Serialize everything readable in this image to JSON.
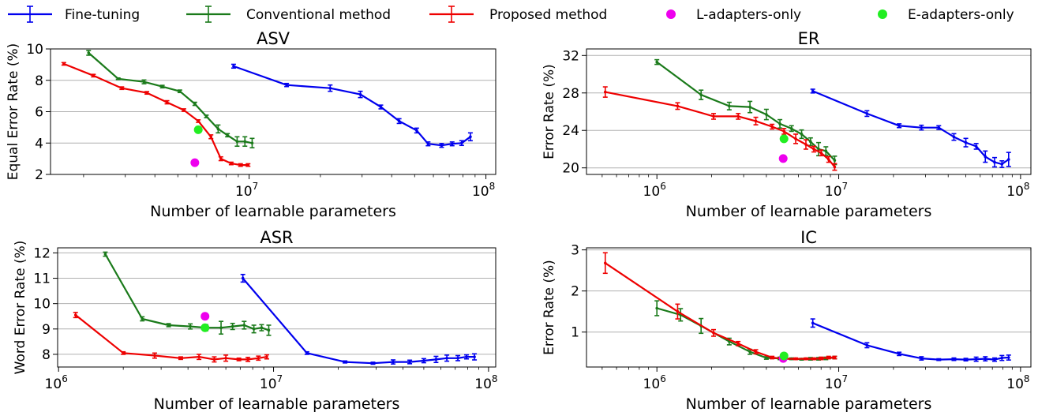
{
  "chart_data": [
    {
      "type": "line",
      "title": "ASV",
      "xlabel": "Number of learnable parameters",
      "ylabel": "Equal Error Rate (%)",
      "xscale": "log",
      "xlim": [
        1450000.0,
        110000000.0
      ],
      "ylim": [
        2,
        10
      ],
      "yticks": [
        2,
        4,
        6,
        8,
        10
      ],
      "xticks": [
        {
          "value": 10000000.0,
          "label": "10",
          "sup": "7"
        },
        {
          "value": 100000000.0,
          "label": "10",
          "sup": "8"
        }
      ],
      "grid": "horizontal",
      "series": [
        {
          "name": "Fine-tuning",
          "color": "#0000ee",
          "style": "errorbar",
          "x": [
            8600000.0,
            14400000.0,
            22000000.0,
            29500000.0,
            36000000.0,
            43000000.0,
            51000000.0,
            57000000.0,
            65000000.0,
            72000000.0,
            79000000.0,
            86000000.0
          ],
          "y": [
            8.9,
            7.7,
            7.5,
            7.1,
            6.3,
            5.4,
            4.8,
            3.95,
            3.85,
            3.95,
            4.0,
            4.4
          ],
          "err": [
            0.12,
            0.1,
            0.2,
            0.2,
            0.12,
            0.15,
            0.15,
            0.12,
            0.12,
            0.12,
            0.15,
            0.25
          ]
        },
        {
          "name": "Conventional method",
          "color": "#1a7a1a",
          "style": "errorbar",
          "x": [
            2100000.0,
            2800000.0,
            3600000.0,
            4300000.0,
            5100000.0,
            5900000.0,
            6600000.0,
            7400000.0,
            8100000.0,
            8900000.0,
            9600000.0,
            10300000.0
          ],
          "y": [
            9.75,
            8.1,
            7.9,
            7.6,
            7.3,
            6.5,
            5.7,
            4.9,
            4.5,
            4.1,
            4.1,
            4.0
          ],
          "err": [
            0.15,
            0.05,
            0.12,
            0.08,
            0.08,
            0.1,
            0.08,
            0.25,
            0.1,
            0.3,
            0.3,
            0.3
          ]
        },
        {
          "name": "Proposed method",
          "color": "#ee0000",
          "style": "errorbar",
          "x": [
            1650000.0,
            2200000.0,
            2900000.0,
            3700000.0,
            4500000.0,
            5300000.0,
            6100000.0,
            6900000.0,
            7600000.0,
            8400000.0,
            9200000.0,
            9900000.0
          ],
          "y": [
            9.05,
            8.3,
            7.5,
            7.2,
            6.6,
            6.1,
            5.4,
            4.4,
            3.0,
            2.7,
            2.6,
            2.6
          ],
          "err": [
            0.08,
            0.08,
            0.08,
            0.08,
            0.1,
            0.08,
            0.08,
            0.12,
            0.12,
            0.08,
            0.08,
            0.08
          ]
        },
        {
          "name": "L-adapters-only",
          "color": "#ee00ee",
          "style": "point",
          "x": [
            5900000.0
          ],
          "y": [
            2.75
          ]
        },
        {
          "name": "E-adapters-only",
          "color": "#22ee22",
          "style": "point",
          "x": [
            6100000.0
          ],
          "y": [
            4.85
          ]
        }
      ]
    },
    {
      "type": "line",
      "title": "ER",
      "xlabel": "Number of learnable parameters",
      "ylabel": "Error Rate (%)",
      "xscale": "log",
      "xlim": [
        410000.0,
        114000000.0
      ],
      "ylim": [
        19.3,
        32.7
      ],
      "yticks": [
        20,
        24,
        28,
        32
      ],
      "xticks": [
        {
          "value": 1000000.0,
          "label": "10",
          "sup": "6"
        },
        {
          "value": 10000000.0,
          "label": "10",
          "sup": "7"
        },
        {
          "value": 100000000.0,
          "label": "10",
          "sup": "8"
        }
      ],
      "grid": "horizontal",
      "series": [
        {
          "name": "Fine-tuning",
          "color": "#0000ee",
          "style": "errorbar",
          "x": [
            7200000.0,
            14300000.0,
            21500000.0,
            28500000.0,
            35500000.0,
            43000000.0,
            50000000.0,
            57000000.0,
            64000000.0,
            72000000.0,
            79000000.0,
            86000000.0
          ],
          "y": [
            28.2,
            25.8,
            24.5,
            24.3,
            24.3,
            23.3,
            22.7,
            22.3,
            21.2,
            20.6,
            20.4,
            20.9
          ],
          "err": [
            0.2,
            0.3,
            0.2,
            0.25,
            0.2,
            0.35,
            0.45,
            0.3,
            0.6,
            0.5,
            0.35,
            0.75
          ]
        },
        {
          "name": "Conventional method",
          "color": "#1a7a1a",
          "style": "errorbar",
          "x": [
            1000000.0,
            1750000.0,
            2500000.0,
            3250000.0,
            4000000.0,
            4750000.0,
            5500000.0,
            6250000.0,
            7000000.0,
            7750000.0,
            8500000.0,
            9500000.0
          ],
          "y": [
            31.3,
            27.8,
            26.6,
            26.5,
            25.7,
            24.7,
            24.2,
            23.6,
            22.8,
            22.0,
            21.8,
            20.8
          ],
          "err": [
            0.25,
            0.5,
            0.4,
            0.6,
            0.55,
            0.45,
            0.3,
            0.45,
            0.4,
            0.7,
            0.45,
            0.45
          ]
        },
        {
          "name": "Proposed method",
          "color": "#ee0000",
          "style": "errorbar",
          "x": [
            520000.0,
            1300000.0,
            2050000.0,
            2800000.0,
            3500000.0,
            4300000.0,
            5000000.0,
            5800000.0,
            6600000.0,
            7300000.0,
            8000000.0,
            8800000.0,
            9500000.0
          ],
          "y": [
            28.1,
            26.6,
            25.5,
            25.5,
            25.0,
            24.4,
            23.9,
            23.1,
            22.5,
            22.0,
            21.6,
            20.9,
            20.1
          ],
          "err": [
            0.55,
            0.35,
            0.3,
            0.3,
            0.4,
            0.25,
            0.3,
            0.5,
            0.5,
            0.3,
            0.3,
            0.3,
            0.35
          ]
        },
        {
          "name": "L-adapters-only",
          "color": "#ee00ee",
          "style": "point",
          "x": [
            4950000.0
          ],
          "y": [
            21.0
          ]
        },
        {
          "name": "E-adapters-only",
          "color": "#22ee22",
          "style": "point",
          "x": [
            5000000.0
          ],
          "y": [
            23.1
          ]
        }
      ]
    },
    {
      "type": "line",
      "title": "ASR",
      "xlabel": "Number of learnable parameters",
      "ylabel": "Word Error Rate (%)",
      "xscale": "log",
      "xlim": [
        990000.0,
        108000000.0
      ],
      "ylim": [
        7.5,
        12.2
      ],
      "yticks": [
        8,
        9,
        10,
        11,
        12
      ],
      "xticks": [
        {
          "value": 1000000.0,
          "label": "10",
          "sup": "6"
        },
        {
          "value": 10000000.0,
          "label": "10",
          "sup": "7"
        },
        {
          "value": 100000000.0,
          "label": "10",
          "sup": "8"
        }
      ],
      "grid": "horizontal",
      "series": [
        {
          "name": "Fine-tuning",
          "color": "#0000ee",
          "style": "errorbar",
          "x": [
            7200000.0,
            14300000.0,
            21500000.0,
            29000000.0,
            36000000.0,
            43000000.0,
            50000000.0,
            57000000.0,
            64000000.0,
            72000000.0,
            79000000.0,
            86000000.0
          ],
          "y": [
            11.0,
            8.05,
            7.7,
            7.65,
            7.7,
            7.7,
            7.75,
            7.8,
            7.85,
            7.85,
            7.9,
            7.9
          ],
          "err": [
            0.15,
            0.05,
            0.04,
            0.04,
            0.08,
            0.07,
            0.08,
            0.12,
            0.12,
            0.1,
            0.08,
            0.12
          ]
        },
        {
          "name": "Conventional method",
          "color": "#1a7a1a",
          "style": "errorbar",
          "x": [
            1650000.0,
            2450000.0,
            3250000.0,
            4100000.0,
            4850000.0,
            5700000.0,
            6450000.0,
            7300000.0,
            8100000.0,
            8800000.0,
            9500000.0
          ],
          "y": [
            11.95,
            9.4,
            9.15,
            9.1,
            9.05,
            9.05,
            9.1,
            9.15,
            9.0,
            9.05,
            8.95
          ],
          "err": [
            0.08,
            0.08,
            0.06,
            0.1,
            0.12,
            0.25,
            0.12,
            0.15,
            0.15,
            0.12,
            0.2
          ]
        },
        {
          "name": "Proposed method",
          "color": "#ee0000",
          "style": "errorbar",
          "x": [
            1200000.0,
            2000000.0,
            2800000.0,
            3700000.0,
            4500000.0,
            5300000.0,
            6000000.0,
            6900000.0,
            7600000.0,
            8500000.0,
            9300000.0
          ],
          "y": [
            9.55,
            8.05,
            7.95,
            7.85,
            7.9,
            7.8,
            7.85,
            7.8,
            7.8,
            7.85,
            7.9
          ],
          "err": [
            0.1,
            0.05,
            0.1,
            0.05,
            0.1,
            0.1,
            0.12,
            0.05,
            0.08,
            0.08,
            0.08
          ]
        },
        {
          "name": "L-adapters-only",
          "color": "#ee00ee",
          "style": "point",
          "x": [
            4800000.0
          ],
          "y": [
            9.5
          ]
        },
        {
          "name": "E-adapters-only",
          "color": "#22ee22",
          "style": "point",
          "x": [
            4800000.0
          ],
          "y": [
            9.05
          ]
        }
      ]
    },
    {
      "type": "line",
      "title": "IC",
      "xlabel": "Number of learnable parameters",
      "ylabel": "Error Rate (%)",
      "xscale": "log",
      "xlim": [
        410000.0,
        114000000.0
      ],
      "ylim": [
        0.15,
        3.05
      ],
      "yticks": [
        1,
        2,
        3
      ],
      "xticks": [
        {
          "value": 1000000.0,
          "label": "10",
          "sup": "6"
        },
        {
          "value": 10000000.0,
          "label": "10",
          "sup": "7"
        },
        {
          "value": 100000000.0,
          "label": "10",
          "sup": "8"
        }
      ],
      "grid": "horizontal",
      "series": [
        {
          "name": "Fine-tuning",
          "color": "#0000ee",
          "style": "errorbar",
          "x": [
            7200000.0,
            14300000.0,
            21500000.0,
            28500000.0,
            35500000.0,
            43000000.0,
            50000000.0,
            57000000.0,
            64000000.0,
            72000000.0,
            79000000.0,
            86000000.0
          ],
          "y": [
            1.22,
            0.68,
            0.47,
            0.36,
            0.33,
            0.34,
            0.33,
            0.34,
            0.35,
            0.33,
            0.37,
            0.38
          ],
          "err": [
            0.1,
            0.06,
            0.04,
            0.04,
            0.02,
            0.03,
            0.03,
            0.05,
            0.05,
            0.04,
            0.06,
            0.06
          ]
        },
        {
          "name": "Conventional method",
          "color": "#1a7a1a",
          "style": "errorbar",
          "x": [
            1000000.0,
            1350000.0,
            1750000.0,
            2500000.0,
            3250000.0,
            4000000.0,
            4750000.0,
            5500000.0,
            6250000.0,
            7000000.0,
            7750000.0,
            8500000.0,
            9500000.0
          ],
          "y": [
            1.58,
            1.42,
            1.15,
            0.77,
            0.52,
            0.37,
            0.36,
            0.35,
            0.34,
            0.35,
            0.35,
            0.36,
            0.38
          ],
          "err": [
            0.18,
            0.15,
            0.18,
            0.08,
            0.06,
            0.03,
            0.03,
            0.02,
            0.02,
            0.03,
            0.03,
            0.03,
            0.03
          ]
        },
        {
          "name": "Proposed method",
          "color": "#ee0000",
          "style": "errorbar",
          "x": [
            520000.0,
            1300000.0,
            2050000.0,
            2800000.0,
            3500000.0,
            4300000.0,
            5000000.0,
            5800000.0,
            6600000.0,
            7300000.0,
            8000000.0,
            8800000.0,
            9500000.0
          ],
          "y": [
            2.68,
            1.5,
            0.98,
            0.72,
            0.52,
            0.38,
            0.35,
            0.35,
            0.35,
            0.35,
            0.36,
            0.38,
            0.38
          ],
          "err": [
            0.25,
            0.18,
            0.08,
            0.05,
            0.05,
            0.03,
            0.03,
            0.02,
            0.02,
            0.02,
            0.03,
            0.03,
            0.03
          ]
        },
        {
          "name": "L-adapters-only",
          "color": "#ee00ee",
          "style": "point",
          "x": [
            4950000.0
          ],
          "y": [
            0.36
          ]
        },
        {
          "name": "E-adapters-only",
          "color": "#22ee22",
          "style": "point",
          "x": [
            5000000.0
          ],
          "y": [
            0.42
          ]
        }
      ]
    }
  ],
  "legend": {
    "placement": "top",
    "items": [
      {
        "label": "Fine-tuning",
        "color": "#0000ee",
        "marker": "errorbar-line"
      },
      {
        "label": "Conventional method",
        "color": "#1a7a1a",
        "marker": "errorbar-line"
      },
      {
        "label": "Proposed method",
        "color": "#ee0000",
        "marker": "errorbar-line"
      },
      {
        "label": "L-adapters-only",
        "color": "#ee00ee",
        "marker": "dot"
      },
      {
        "label": "E-adapters-only",
        "color": "#22ee22",
        "marker": "dot"
      }
    ]
  }
}
